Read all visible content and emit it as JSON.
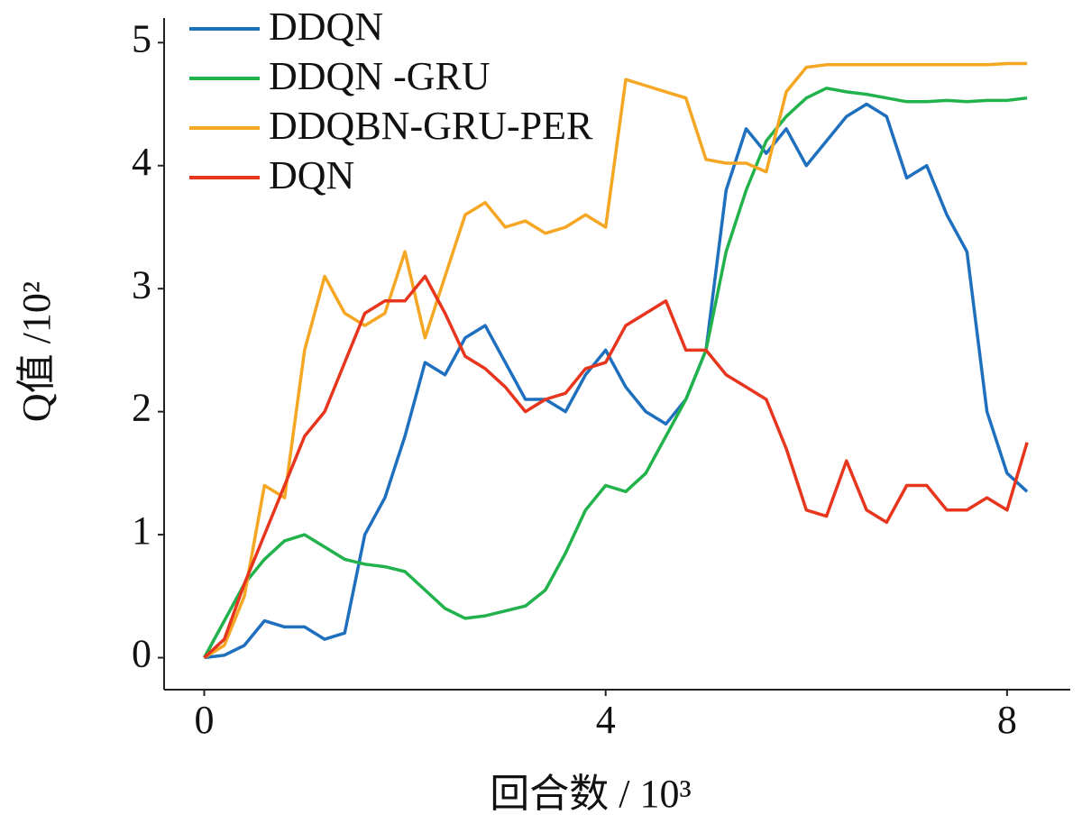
{
  "chart_data": {
    "type": "line",
    "xlabel": "回合数 / 10³",
    "ylabel": "Q值 /10²",
    "x": [
      0,
      0.2,
      0.4,
      0.6,
      0.8,
      1.0,
      1.2,
      1.4,
      1.6,
      1.8,
      2.0,
      2.2,
      2.4,
      2.6,
      2.8,
      3.0,
      3.2,
      3.4,
      3.6,
      3.8,
      4.0,
      4.2,
      4.4,
      4.6,
      4.8,
      5.0,
      5.2,
      5.4,
      5.6,
      5.8,
      6.0,
      6.2,
      6.4,
      6.6,
      6.8,
      7.0,
      7.2,
      7.4,
      7.6,
      7.8,
      8.0,
      8.2
    ],
    "series": [
      {
        "name": "DDQN",
        "color": "#1f6fbf",
        "values": [
          0,
          0.02,
          0.1,
          0.3,
          0.25,
          0.25,
          0.15,
          0.2,
          1.0,
          1.3,
          1.8,
          2.4,
          2.3,
          2.6,
          2.7,
          2.4,
          2.1,
          2.1,
          2.0,
          2.3,
          2.5,
          2.2,
          2.0,
          1.9,
          2.1,
          2.5,
          3.8,
          4.3,
          4.1,
          4.3,
          4.0,
          4.2,
          4.4,
          4.5,
          4.4,
          3.9,
          4.0,
          3.6,
          3.3,
          2.0,
          1.5,
          1.35
        ]
      },
      {
        "name": "DDQN -GRU",
        "color": "#22b24c",
        "values": [
          0,
          0.3,
          0.6,
          0.8,
          0.95,
          1.0,
          0.9,
          0.8,
          0.76,
          0.74,
          0.7,
          0.55,
          0.4,
          0.32,
          0.34,
          0.38,
          0.42,
          0.55,
          0.85,
          1.2,
          1.4,
          1.35,
          1.5,
          1.8,
          2.1,
          2.5,
          3.3,
          3.8,
          4.2,
          4.4,
          4.55,
          4.63,
          4.6,
          4.58,
          4.55,
          4.52,
          4.52,
          4.53,
          4.52,
          4.53,
          4.53,
          4.55
        ]
      },
      {
        "name": "DDQBN-GRU-PER",
        "color": "#f5a623",
        "values": [
          0,
          0.1,
          0.5,
          1.4,
          1.3,
          2.5,
          3.1,
          2.8,
          2.7,
          2.8,
          3.3,
          2.6,
          3.1,
          3.6,
          3.7,
          3.5,
          3.55,
          3.45,
          3.5,
          3.6,
          3.5,
          4.7,
          4.65,
          4.6,
          4.55,
          4.05,
          4.02,
          4.02,
          3.95,
          4.6,
          4.8,
          4.82,
          4.82,
          4.82,
          4.82,
          4.82,
          4.82,
          4.82,
          4.82,
          4.82,
          4.83,
          4.83
        ]
      },
      {
        "name": "DQN",
        "color": "#e8351e",
        "values": [
          0,
          0.15,
          0.6,
          1.0,
          1.4,
          1.8,
          2.0,
          2.4,
          2.8,
          2.9,
          2.9,
          3.1,
          2.8,
          2.45,
          2.35,
          2.2,
          2.0,
          2.1,
          2.15,
          2.35,
          2.4,
          2.7,
          2.8,
          2.9,
          2.5,
          2.5,
          2.3,
          2.2,
          2.1,
          1.7,
          1.2,
          1.15,
          1.6,
          1.2,
          1.1,
          1.4,
          1.4,
          1.2,
          1.2,
          1.3,
          1.2,
          1.75
        ]
      }
    ],
    "xlim": [
      -0.4,
      8.63
    ],
    "xticks": [
      0,
      4,
      8
    ],
    "ylim": [
      -0.26,
      5.2
    ],
    "yticks": [
      0,
      1,
      2,
      3,
      4,
      5
    ],
    "legend": "upper left"
  }
}
